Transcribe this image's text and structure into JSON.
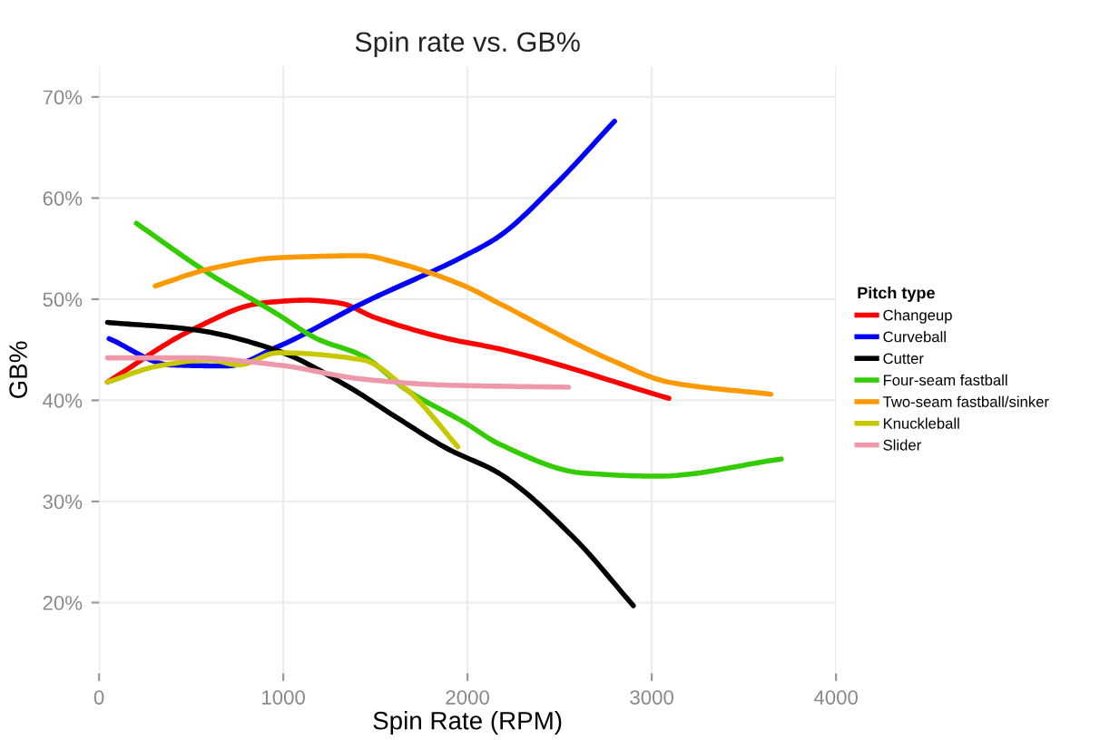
{
  "chart_data": {
    "type": "line",
    "title": "Spin rate vs. GB%",
    "xlabel": "Spin Rate (RPM)",
    "ylabel": "GB%",
    "legend_title": "Pitch type",
    "legend": "right",
    "grid": true,
    "line_style": "solid",
    "xlim": [
      0,
      4000
    ],
    "ylim": [
      13,
      73
    ],
    "xticks": [
      0,
      1000,
      2000,
      3000,
      4000
    ],
    "yticks": [
      {
        "value": 20,
        "label": "20%"
      },
      {
        "value": 30,
        "label": "30%"
      },
      {
        "value": 40,
        "label": "40%"
      },
      {
        "value": 50,
        "label": "50%"
      },
      {
        "value": 60,
        "label": "60%"
      },
      {
        "value": 70,
        "label": "70%"
      }
    ],
    "series": [
      {
        "name": "Changeup",
        "color": "#ff0000",
        "x": [
          46,
          508,
          877,
          1125,
          1311,
          1496,
          1893,
          2170,
          3093
        ],
        "values": [
          41.8,
          47.0,
          49.6,
          49.9,
          49.6,
          48.2,
          46.1,
          45.1,
          40.2
        ]
      },
      {
        "name": "Curveball",
        "color": "#0000ff",
        "x": [
          55,
          388,
          693,
          970,
          1430,
          1985,
          2170,
          2475,
          2798
        ],
        "values": [
          46.1,
          43.5,
          43.4,
          45.3,
          49.6,
          54.3,
          56.2,
          61.3,
          67.6
        ]
      },
      {
        "name": "Cutter",
        "color": "#000000",
        "x": [
          46,
          508,
          970,
          1339,
          1616,
          1893,
          2170,
          2567,
          2900
        ],
        "values": [
          47.7,
          47.0,
          44.9,
          41.5,
          38.3,
          35.2,
          32.8,
          26.6,
          19.7
        ]
      },
      {
        "name": "Four-seam fastball",
        "color": "#33cc00",
        "x": [
          203,
          600,
          970,
          1182,
          1430,
          1680,
          1985,
          2170,
          2632,
          3030,
          3703
        ],
        "values": [
          57.5,
          52.5,
          48.5,
          46.1,
          44.4,
          40.9,
          37.8,
          35.7,
          32.8,
          32.5,
          34.2
        ]
      },
      {
        "name": "Two-seam fastball/sinker",
        "color": "#ff9900",
        "x": [
          305,
          600,
          970,
          1430,
          1616,
          1985,
          2170,
          2790,
          3093,
          3647
        ],
        "values": [
          51.3,
          53.0,
          54.1,
          54.3,
          53.6,
          51.3,
          49.6,
          43.9,
          41.8,
          40.6
        ]
      },
      {
        "name": "Knuckleball",
        "color": "#c8c800",
        "x": [
          46,
          323,
          600,
          757,
          970,
          1430,
          1680,
          1948
        ],
        "values": [
          41.8,
          43.4,
          44.0,
          43.5,
          44.7,
          44.0,
          40.9,
          35.4
        ]
      },
      {
        "name": "Slider",
        "color": "#ee99aa",
        "x": [
          46,
          508,
          970,
          1430,
          1893,
          2548
        ],
        "values": [
          44.2,
          44.2,
          43.5,
          42.1,
          41.5,
          41.3
        ]
      }
    ]
  }
}
